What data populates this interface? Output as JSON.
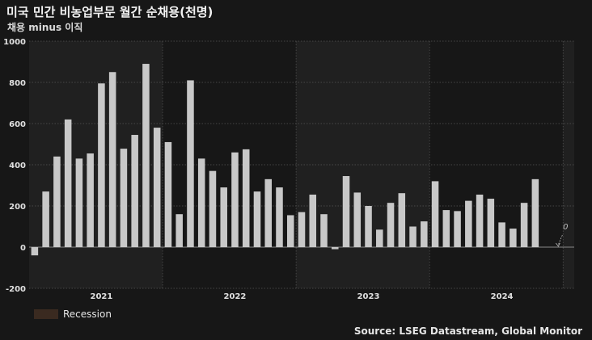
{
  "title": "미국 민간 비농업부문 월간 순채용(천명)",
  "subtitle": "채용 minus 이직",
  "legend": {
    "label": "Recession"
  },
  "source": "Source: LSEG Datastream, Global Monitor",
  "colors": {
    "background": "#171717",
    "plot_light": "#202020",
    "plot_dark": "#171717",
    "bar": "#c8c8c8",
    "recession": "#3a2a20",
    "grid": "#555555",
    "zero_line": "#888888",
    "annotation": "#bbbbbb"
  },
  "chart_data": {
    "type": "bar",
    "title": "미국 민간 비농업부문 월간 순채용(천명)",
    "subtitle": "채용 minus 이직",
    "x": [
      "2021-01",
      "2021-02",
      "2021-03",
      "2021-04",
      "2021-05",
      "2021-06",
      "2021-07",
      "2021-08",
      "2021-09",
      "2021-10",
      "2021-11",
      "2021-12",
      "2022-01",
      "2022-02",
      "2022-03",
      "2022-04",
      "2022-05",
      "2022-06",
      "2022-07",
      "2022-08",
      "2022-09",
      "2022-10",
      "2022-11",
      "2022-12",
      "2023-01",
      "2023-02",
      "2023-03",
      "2023-04",
      "2023-05",
      "2023-06",
      "2023-07",
      "2023-08",
      "2023-09",
      "2023-10",
      "2023-11",
      "2023-12",
      "2024-01",
      "2024-02",
      "2024-03",
      "2024-04",
      "2024-05",
      "2024-06",
      "2024-07",
      "2024-08",
      "2024-09",
      "2024-10",
      "2024-11",
      "2024-12",
      "2025-01"
    ],
    "values": [
      -40,
      270,
      440,
      620,
      430,
      455,
      795,
      850,
      478,
      545,
      890,
      580,
      510,
      160,
      810,
      430,
      370,
      290,
      460,
      475,
      270,
      330,
      290,
      155,
      170,
      255,
      160,
      -10,
      345,
      265,
      200,
      85,
      215,
      262,
      100,
      125,
      320,
      180,
      175,
      225,
      255,
      235,
      120,
      90,
      215,
      330,
      null,
      0,
      null
    ],
    "year_labels": [
      {
        "label": "2021",
        "x": "2021-07"
      },
      {
        "label": "2022",
        "x": "2022-07"
      },
      {
        "label": "2023",
        "x": "2023-07"
      },
      {
        "label": "2024",
        "x": "2024-07"
      }
    ],
    "y_ticks": [
      "1000",
      "800",
      "600",
      "400",
      "200",
      "0",
      "-200"
    ],
    "ylim": [
      -200,
      1000
    ],
    "annotation": {
      "text": "0",
      "x": "2024-12",
      "value": 0
    },
    "grid": true,
    "legend": {
      "position": "bottom-left",
      "entries": [
        "Recession"
      ]
    }
  }
}
